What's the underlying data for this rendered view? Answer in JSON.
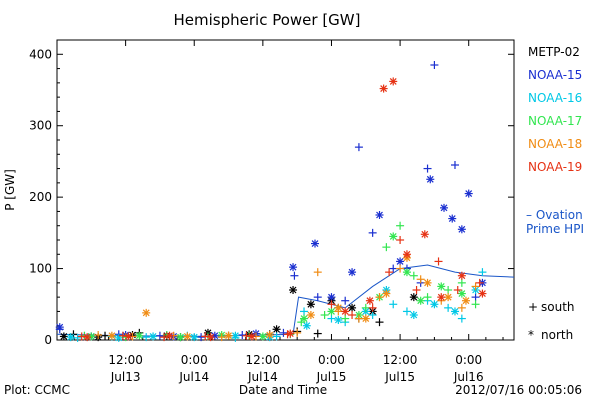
{
  "chart_data": {
    "type": "scatter",
    "title": "Hemispheric Power [GW]",
    "ylabel": "P [GW]",
    "xlabel": "Date and Time",
    "ylim": [
      0,
      420
    ],
    "yticks": [
      0,
      100,
      200,
      300,
      400
    ],
    "xlim": [
      0,
      3.33
    ],
    "xticks": [
      {
        "x": 0.5,
        "top": "12:00",
        "bottom": "Jul13"
      },
      {
        "x": 1.0,
        "top": "0:00",
        "bottom": "Jul14"
      },
      {
        "x": 1.5,
        "top": "12:00",
        "bottom": "Jul14"
      },
      {
        "x": 2.0,
        "top": "0:00",
        "bottom": "Jul15"
      },
      {
        "x": 2.5,
        "top": "12:00",
        "bottom": "Jul15"
      },
      {
        "x": 3.0,
        "top": "0:00",
        "bottom": "Jul16"
      }
    ],
    "series": [
      {
        "name": "METP-02",
        "color": "#000000",
        "south": [
          [
            0.12,
            8
          ],
          [
            0.35,
            6
          ],
          [
            0.6,
            10
          ],
          [
            0.9,
            4
          ],
          [
            1.25,
            6
          ],
          [
            1.55,
            8
          ],
          [
            1.75,
            12
          ],
          [
            1.9,
            9
          ],
          [
            2.05,
            45
          ],
          [
            2.2,
            30
          ],
          [
            2.35,
            25
          ]
        ],
        "north": [
          [
            0.05,
            5
          ],
          [
            0.3,
            4
          ],
          [
            0.55,
            7
          ],
          [
            0.8,
            6
          ],
          [
            1.1,
            10
          ],
          [
            1.4,
            8
          ],
          [
            1.6,
            15
          ],
          [
            1.72,
            70
          ],
          [
            1.85,
            50
          ],
          [
            2.0,
            55
          ],
          [
            2.15,
            45
          ],
          [
            2.3,
            40
          ],
          [
            2.6,
            60
          ]
        ]
      },
      {
        "name": "NOAA-15",
        "color": "#1a2fd0",
        "south": [
          [
            0.02,
            15
          ],
          [
            0.2,
            5
          ],
          [
            0.45,
            8
          ],
          [
            0.75,
            6
          ],
          [
            1.05,
            4
          ],
          [
            1.35,
            7
          ],
          [
            1.65,
            10
          ],
          [
            1.73,
            90
          ],
          [
            1.9,
            60
          ],
          [
            2.1,
            55
          ],
          [
            2.2,
            270
          ],
          [
            2.3,
            150
          ],
          [
            2.45,
            100
          ],
          [
            2.55,
            100
          ],
          [
            2.65,
            80
          ],
          [
            2.7,
            240
          ],
          [
            2.75,
            385
          ],
          [
            2.9,
            245
          ],
          [
            3.05,
            60
          ]
        ],
        "north": [
          [
            0.02,
            18
          ],
          [
            0.25,
            5
          ],
          [
            0.5,
            7
          ],
          [
            0.85,
            5
          ],
          [
            1.15,
            6
          ],
          [
            1.45,
            9
          ],
          [
            1.72,
            102
          ],
          [
            1.88,
            135
          ],
          [
            2.0,
            60
          ],
          [
            2.15,
            95
          ],
          [
            2.35,
            175
          ],
          [
            2.5,
            110
          ],
          [
            2.72,
            225
          ],
          [
            2.82,
            185
          ],
          [
            2.88,
            170
          ],
          [
            2.95,
            155
          ],
          [
            3.0,
            205
          ],
          [
            3.1,
            80
          ]
        ]
      },
      {
        "name": "NOAA-16",
        "color": "#00c8e6",
        "south": [
          [
            0.15,
            3
          ],
          [
            0.4,
            5
          ],
          [
            0.65,
            4
          ],
          [
            0.95,
            6
          ],
          [
            1.3,
            3
          ],
          [
            1.6,
            5
          ],
          [
            1.8,
            40
          ],
          [
            2.0,
            30
          ],
          [
            2.1,
            25
          ],
          [
            2.3,
            35
          ],
          [
            2.45,
            50
          ],
          [
            2.55,
            40
          ],
          [
            2.7,
            55
          ],
          [
            2.85,
            45
          ],
          [
            2.95,
            30
          ],
          [
            3.1,
            95
          ]
        ],
        "north": [
          [
            0.1,
            4
          ],
          [
            0.45,
            3
          ],
          [
            0.7,
            5
          ],
          [
            1.0,
            4
          ],
          [
            1.3,
            6
          ],
          [
            1.55,
            4
          ],
          [
            1.82,
            20
          ],
          [
            2.05,
            28
          ],
          [
            2.25,
            40
          ],
          [
            2.4,
            70
          ],
          [
            2.6,
            35
          ],
          [
            2.75,
            50
          ],
          [
            2.9,
            40
          ],
          [
            3.05,
            70
          ]
        ]
      },
      {
        "name": "NOAA-17",
        "color": "#32e650",
        "south": [
          [
            0.2,
            6
          ],
          [
            0.5,
            4
          ],
          [
            0.8,
            7
          ],
          [
            1.1,
            5
          ],
          [
            1.4,
            6
          ],
          [
            1.7,
            8
          ],
          [
            1.78,
            25
          ],
          [
            1.95,
            35
          ],
          [
            2.1,
            30
          ],
          [
            2.25,
            45
          ],
          [
            2.4,
            130
          ],
          [
            2.5,
            160
          ],
          [
            2.6,
            90
          ],
          [
            2.7,
            60
          ],
          [
            2.85,
            70
          ],
          [
            2.95,
            80
          ],
          [
            3.05,
            50
          ]
        ],
        "north": [
          [
            0.25,
            5
          ],
          [
            0.6,
            6
          ],
          [
            0.9,
            4
          ],
          [
            1.2,
            7
          ],
          [
            1.5,
            5
          ],
          [
            1.8,
            30
          ],
          [
            2.0,
            40
          ],
          [
            2.2,
            35
          ],
          [
            2.35,
            60
          ],
          [
            2.45,
            145
          ],
          [
            2.55,
            95
          ],
          [
            2.65,
            55
          ],
          [
            2.8,
            75
          ],
          [
            2.95,
            65
          ]
        ]
      },
      {
        "name": "NOAA-18",
        "color": "#f08c14",
        "south": [
          [
            0.3,
            7
          ],
          [
            0.55,
            5
          ],
          [
            0.85,
            6
          ],
          [
            1.2,
            4
          ],
          [
            1.45,
            5
          ],
          [
            1.75,
            10
          ],
          [
            1.9,
            95
          ],
          [
            2.05,
            40
          ],
          [
            2.2,
            30
          ],
          [
            2.35,
            60
          ],
          [
            2.5,
            100
          ],
          [
            2.65,
            85
          ],
          [
            2.8,
            55
          ],
          [
            2.95,
            45
          ],
          [
            3.05,
            75
          ]
        ],
        "north": [
          [
            0.65,
            38
          ],
          [
            0.4,
            6
          ],
          [
            0.95,
            5
          ],
          [
            1.25,
            6
          ],
          [
            1.55,
            7
          ],
          [
            1.85,
            35
          ],
          [
            2.05,
            45
          ],
          [
            2.25,
            30
          ],
          [
            2.4,
            65
          ],
          [
            2.55,
            115
          ],
          [
            2.7,
            80
          ],
          [
            2.85,
            60
          ],
          [
            2.98,
            55
          ]
        ]
      },
      {
        "name": "NOAA-19",
        "color": "#e63214",
        "south": [
          [
            0.18,
            5
          ],
          [
            0.48,
            6
          ],
          [
            0.78,
            4
          ],
          [
            1.08,
            5
          ],
          [
            1.38,
            6
          ],
          [
            1.68,
            8
          ],
          [
            2.0,
            50
          ],
          [
            2.15,
            35
          ],
          [
            2.3,
            45
          ],
          [
            2.42,
            95
          ],
          [
            2.5,
            140
          ],
          [
            2.62,
            70
          ],
          [
            2.78,
            110
          ],
          [
            2.92,
            70
          ],
          [
            3.08,
            80
          ]
        ],
        "north": [
          [
            0.22,
            4
          ],
          [
            0.52,
            5
          ],
          [
            0.82,
            6
          ],
          [
            1.12,
            4
          ],
          [
            1.42,
            5
          ],
          [
            1.7,
            9
          ],
          [
            2.1,
            40
          ],
          [
            2.28,
            55
          ],
          [
            2.38,
            352
          ],
          [
            2.45,
            362
          ],
          [
            2.55,
            120
          ],
          [
            2.68,
            148
          ],
          [
            2.8,
            60
          ],
          [
            2.95,
            90
          ],
          [
            3.1,
            65
          ]
        ]
      }
    ],
    "ovation_line": [
      [
        0.0,
        8
      ],
      [
        0.5,
        6
      ],
      [
        1.0,
        5
      ],
      [
        1.5,
        7
      ],
      [
        1.72,
        8
      ],
      [
        1.76,
        60
      ],
      [
        1.9,
        55
      ],
      [
        2.1,
        45
      ],
      [
        2.3,
        75
      ],
      [
        2.5,
        100
      ],
      [
        2.7,
        105
      ],
      [
        2.9,
        95
      ],
      [
        3.1,
        90
      ],
      [
        3.33,
        88
      ]
    ],
    "ovation_label_1": "– Ovation",
    "ovation_label_2": "Prime HPI",
    "ovation_color": "#1a56c8",
    "marker_legend": [
      {
        "symbol": "+",
        "text": "south"
      },
      {
        "symbol": "*",
        "text": "north"
      }
    ]
  },
  "footer": {
    "plot_source": "Plot: CCMC",
    "timestamp": "2012/07/16 00:05:06"
  }
}
